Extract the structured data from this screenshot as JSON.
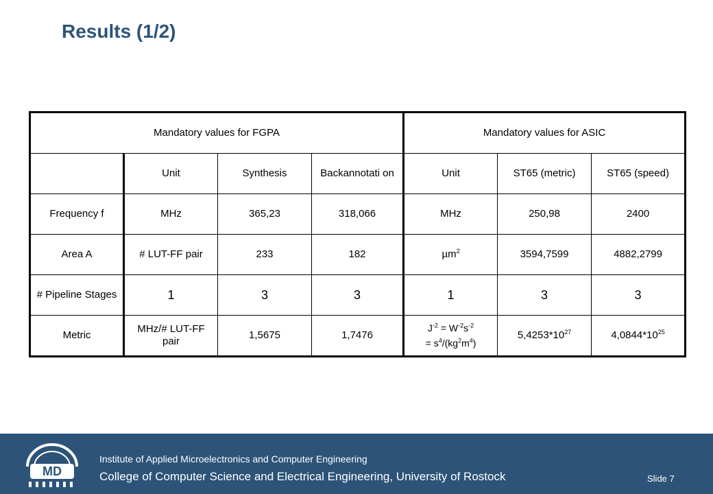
{
  "slide": {
    "title": "Results (1/2)"
  },
  "table": {
    "group_fpga": "Mandatory values for FGPA",
    "group_asic": "Mandatory values for ASIC",
    "header": {
      "blank": "",
      "unit_fpga": "Unit",
      "synthesis": "Synthesis",
      "backannotation": "Backannotati on",
      "unit_asic": "Unit",
      "st65_metric": "ST65 (metric)",
      "st65_speed": "ST65 (speed)"
    },
    "rows": {
      "frequency": {
        "label": "Frequency f",
        "unit_fpga": "MHz",
        "synthesis": "365,23",
        "backannotation": "318,066",
        "unit_asic": "MHz",
        "st65_metric": "250,98",
        "st65_speed": "2400"
      },
      "area": {
        "label": "Area A",
        "unit_fpga": "# LUT-FF pair",
        "synthesis": "233",
        "backannotation": "182",
        "unit_asic_base": "µm",
        "unit_asic_sup": "2",
        "st65_metric": "3594,7599",
        "st65_speed": "4882,2799"
      },
      "pipeline": {
        "label": "# Pipeline Stages",
        "unit_fpga": "1",
        "synthesis": "3",
        "backannotation": "3",
        "unit_asic": "1",
        "st65_metric": "3",
        "st65_speed": "3"
      },
      "metric": {
        "label": "Metric",
        "unit_fpga": "MHz/# LUT-FF pair",
        "synthesis": "1,5675",
        "backannotation": "1,7476",
        "unit_asic": {
          "j": "J",
          "j_exp": "-2",
          "eq_w": " = W",
          "w_exp": "-2",
          "s": "s",
          "s_exp": "-2",
          "eq_s": "= s",
          "s4_exp": "4",
          "kg": "/(kg",
          "kg_exp": "2",
          "m": "m",
          "m_exp": "4",
          "close": ")"
        },
        "st65_metric_base": "5,4253*10",
        "st65_metric_exp": "27",
        "st65_speed_base": "4,0844*10",
        "st65_speed_exp": "25"
      }
    }
  },
  "footer": {
    "institute": "Institute of Applied Microelectronics and Computer Engineering",
    "college": "College of Computer Science and Electrical Engineering, University of Rostock",
    "slide_number": "Slide 7",
    "logo_text": "MD",
    "colors": {
      "band": "#2d5478",
      "text": "#ffffff"
    }
  },
  "colors": {
    "title": "#2d5478"
  }
}
